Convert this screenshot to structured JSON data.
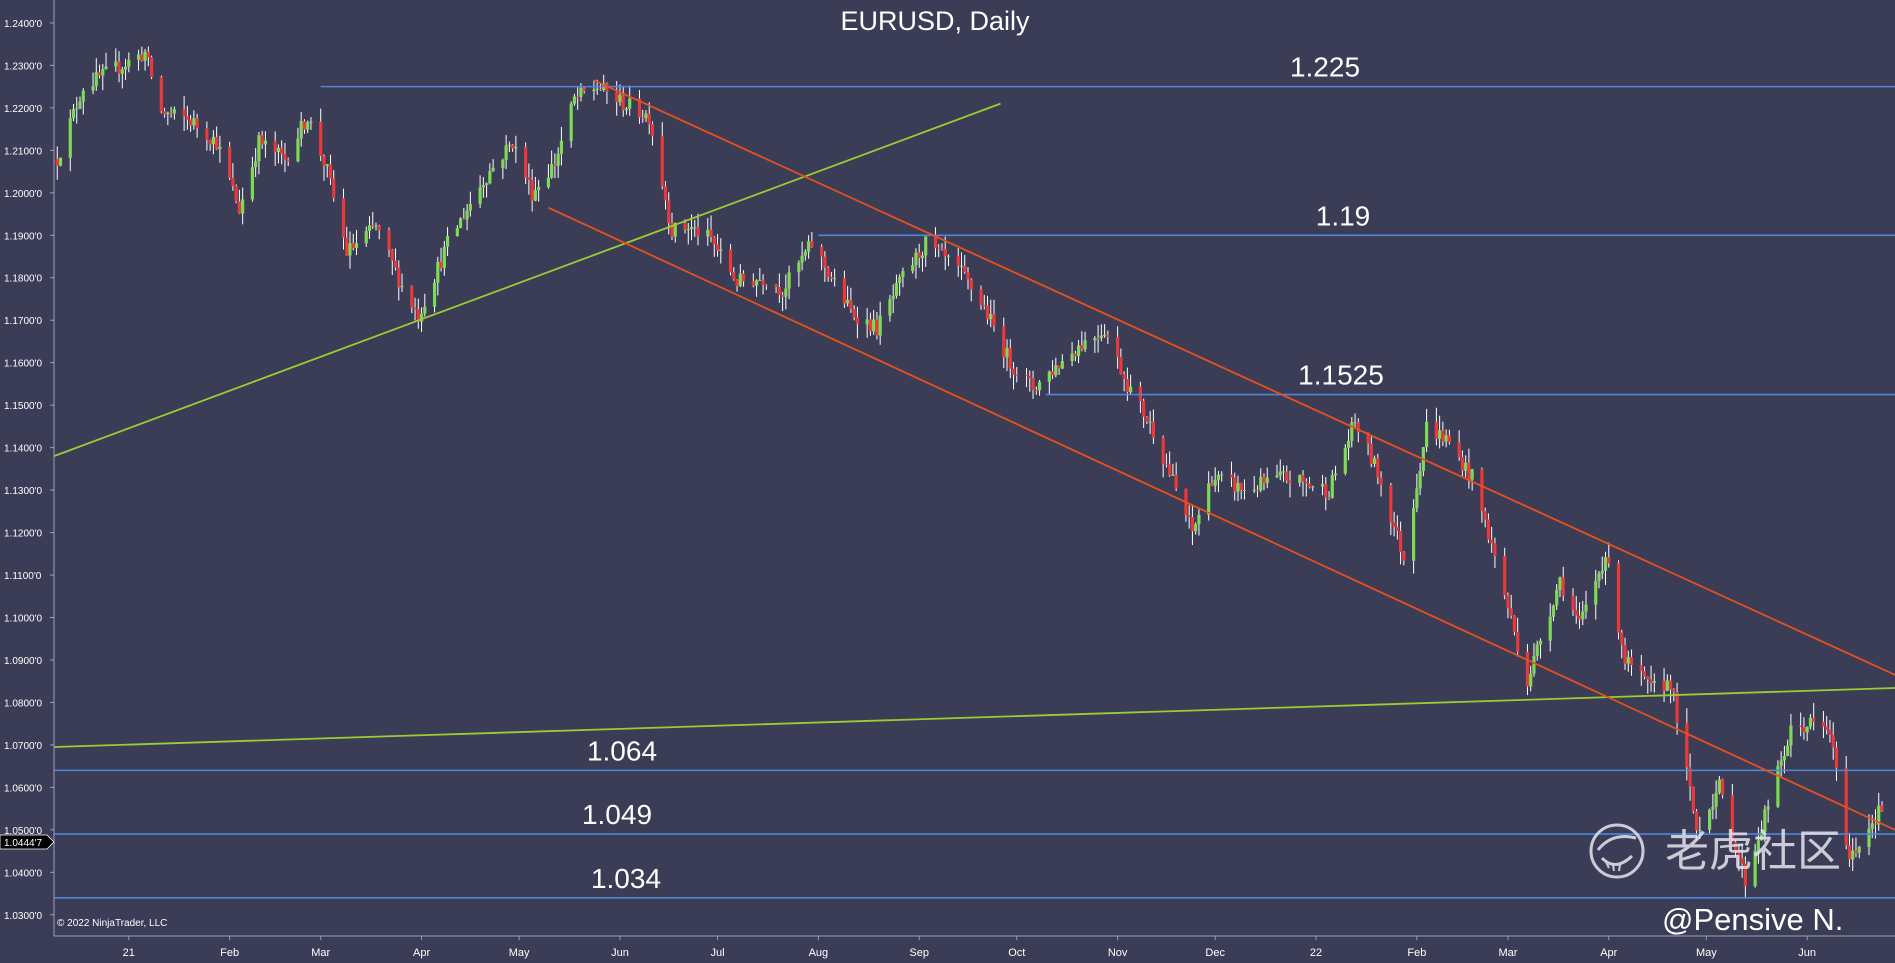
{
  "chart_data": {
    "type": "candlestick",
    "title": "EURUSD, Daily",
    "symbol": "EURUSD",
    "timeframe": "Daily",
    "copyright": "© 2022 NinjaTrader, LLC",
    "watermark": {
      "text": "老虎社区",
      "author": "@Pensive N."
    },
    "current_price_label": "1.0444'7",
    "y_axis": {
      "min": 1.025,
      "max": 1.2454,
      "ticks": [
        1.24,
        1.23,
        1.22,
        1.21,
        1.2,
        1.19,
        1.18,
        1.17,
        1.16,
        1.15,
        1.14,
        1.13,
        1.12,
        1.11,
        1.1,
        1.09,
        1.08,
        1.07,
        1.06,
        1.05,
        1.04,
        1.03
      ],
      "tick_labels": [
        "1.2400'0",
        "1.2300'0",
        "1.2200'0",
        "1.2100'0",
        "1.2000'0",
        "1.1900'0",
        "1.1800'0",
        "1.1700'0",
        "1.1600'0",
        "1.1500'0",
        "1.1400'0",
        "1.1300'0",
        "1.1200'0",
        "1.1100'0",
        "1.1000'0",
        "1.0900'0",
        "1.0800'0",
        "1.0700'0",
        "1.0600'0",
        "1.0500'0",
        "1.0400'0",
        "1.0300'0"
      ]
    },
    "x_axis": {
      "start": "2020-12-09",
      "end": "2022-06-28",
      "ticks": [
        {
          "date": "2021-01-01",
          "label": "21"
        },
        {
          "date": "2021-02-01",
          "label": "Feb"
        },
        {
          "date": "2021-03-01",
          "label": "Mar"
        },
        {
          "date": "2021-04-01",
          "label": "Apr"
        },
        {
          "date": "2021-05-01",
          "label": "May"
        },
        {
          "date": "2021-06-01",
          "label": "Jun"
        },
        {
          "date": "2021-07-01",
          "label": "Jul"
        },
        {
          "date": "2021-08-01",
          "label": "Aug"
        },
        {
          "date": "2021-09-01",
          "label": "Sep"
        },
        {
          "date": "2021-10-01",
          "label": "Oct"
        },
        {
          "date": "2021-11-01",
          "label": "Nov"
        },
        {
          "date": "2021-12-01",
          "label": "Dec"
        },
        {
          "date": "2022-01-01",
          "label": "22"
        },
        {
          "date": "2022-02-01",
          "label": "Feb"
        },
        {
          "date": "2022-03-01",
          "label": "Mar"
        },
        {
          "date": "2022-04-01",
          "label": "Apr"
        },
        {
          "date": "2022-05-01",
          "label": "May"
        },
        {
          "date": "2022-06-01",
          "label": "Jun"
        }
      ]
    },
    "price_path": [
      [
        "2020-12-10",
        1.208
      ],
      [
        "2020-12-18",
        1.225
      ],
      [
        "2021-01-06",
        1.233
      ],
      [
        "2021-01-11",
        1.219
      ],
      [
        "2021-01-20",
        1.217
      ],
      [
        "2021-01-28",
        1.212
      ],
      [
        "2021-02-04",
        1.196
      ],
      [
        "2021-02-10",
        1.212
      ],
      [
        "2021-02-18",
        1.208
      ],
      [
        "2021-02-25",
        1.218
      ],
      [
        "2021-03-03",
        1.205
      ],
      [
        "2021-03-09",
        1.186
      ],
      [
        "2021-03-18",
        1.192
      ],
      [
        "2021-03-26",
        1.178
      ],
      [
        "2021-03-31",
        1.171
      ],
      [
        "2021-04-09",
        1.188
      ],
      [
        "2021-04-20",
        1.203
      ],
      [
        "2021-04-29",
        1.212
      ],
      [
        "2021-05-05",
        1.2
      ],
      [
        "2021-05-12",
        1.207
      ],
      [
        "2021-05-18",
        1.222
      ],
      [
        "2021-05-25",
        1.225
      ],
      [
        "2021-06-02",
        1.221
      ],
      [
        "2021-06-10",
        1.218
      ],
      [
        "2021-06-17",
        1.191
      ],
      [
        "2021-06-22",
        1.192
      ],
      [
        "2021-06-29",
        1.189
      ],
      [
        "2021-07-07",
        1.179
      ],
      [
        "2021-07-16",
        1.18
      ],
      [
        "2021-07-21",
        1.177
      ],
      [
        "2021-07-30",
        1.188
      ],
      [
        "2021-08-11",
        1.172
      ],
      [
        "2021-08-19",
        1.168
      ],
      [
        "2021-08-27",
        1.18
      ],
      [
        "2021-09-03",
        1.188
      ],
      [
        "2021-09-14",
        1.181
      ],
      [
        "2021-09-21",
        1.173
      ],
      [
        "2021-09-29",
        1.16
      ],
      [
        "2021-10-06",
        1.154
      ],
      [
        "2021-10-20",
        1.164
      ],
      [
        "2021-10-28",
        1.168
      ],
      [
        "2021-11-04",
        1.155
      ],
      [
        "2021-11-12",
        1.144
      ],
      [
        "2021-11-24",
        1.12
      ],
      [
        "2021-11-30",
        1.133
      ],
      [
        "2021-12-10",
        1.13
      ],
      [
        "2021-12-22",
        1.133
      ],
      [
        "2022-01-05",
        1.13
      ],
      [
        "2022-01-13",
        1.146
      ],
      [
        "2022-01-20",
        1.134
      ],
      [
        "2022-01-28",
        1.114
      ],
      [
        "2022-02-04",
        1.145
      ],
      [
        "2022-02-10",
        1.142
      ],
      [
        "2022-02-18",
        1.133
      ],
      [
        "2022-02-24",
        1.117
      ],
      [
        "2022-03-07",
        1.085
      ],
      [
        "2022-03-11",
        1.095
      ],
      [
        "2022-03-17",
        1.109
      ],
      [
        "2022-03-23",
        1.098
      ],
      [
        "2022-03-31",
        1.115
      ],
      [
        "2022-04-06",
        1.09
      ],
      [
        "2022-04-14",
        1.083
      ],
      [
        "2022-04-20",
        1.085
      ],
      [
        "2022-04-28",
        1.05
      ],
      [
        "2022-05-05",
        1.06
      ],
      [
        "2022-05-13",
        1.038
      ],
      [
        "2022-05-20",
        1.056
      ],
      [
        "2022-05-27",
        1.073
      ],
      [
        "2022-06-02",
        1.075
      ],
      [
        "2022-06-08",
        1.073
      ],
      [
        "2022-06-14",
        1.043
      ],
      [
        "2022-06-20",
        1.051
      ],
      [
        "2022-06-24",
        1.055
      ]
    ],
    "horizontal_levels": [
      {
        "value": 1.225,
        "label": "1.225",
        "start": "2021-03-01"
      },
      {
        "value": 1.19,
        "label": "1.19",
        "start": "2021-08-01"
      },
      {
        "value": 1.1525,
        "label": "1.1525",
        "start": "2021-10-10"
      },
      {
        "value": 1.064,
        "label": "1.064",
        "start": "2020-12-09"
      },
      {
        "value": 1.049,
        "label": "1.049",
        "start": "2020-12-09"
      },
      {
        "value": 1.034,
        "label": "1.034",
        "start": "2020-12-09"
      }
    ],
    "trendlines": [
      {
        "color": "#9acd32",
        "from": [
          "2020-12-09",
          1.138
        ],
        "to": [
          "2021-09-26",
          1.221
        ]
      },
      {
        "color": "#9acd32",
        "from": [
          "2020-12-09",
          1.0695
        ],
        "to": [
          "2022-06-28",
          1.0834
        ]
      },
      {
        "color": "#e8501c",
        "from": [
          "2021-05-24",
          1.2265
        ],
        "to": [
          "2022-06-28",
          1.0865
        ]
      },
      {
        "color": "#e8501c",
        "from": [
          "2021-05-10",
          1.1965
        ],
        "to": [
          "2022-06-28",
          1.05
        ]
      }
    ],
    "colors": {
      "background": "#3b3c56",
      "up_candle": "#7ed957",
      "down_candle": "#e83a3a",
      "wick": "#ffffff",
      "level_line": "#4f86d9",
      "support_trend": "#9acd32",
      "channel": "#e8501c",
      "text": "#ffffff"
    },
    "grid": false
  }
}
